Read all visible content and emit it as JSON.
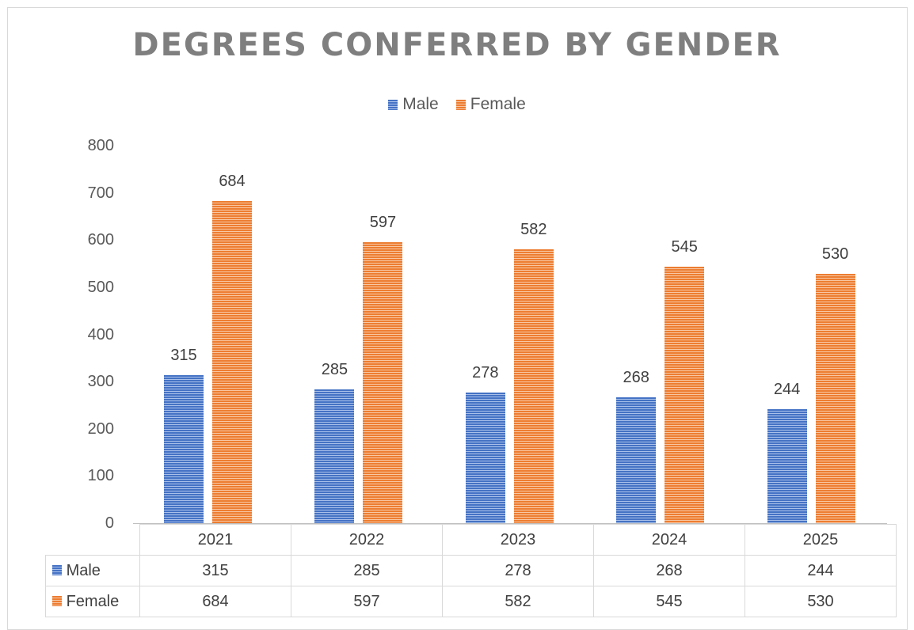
{
  "chart_data": {
    "type": "bar",
    "title": "DEGREES CONFERRED BY GENDER",
    "categories": [
      "2021",
      "2022",
      "2023",
      "2024",
      "2025"
    ],
    "series": [
      {
        "name": "Male",
        "color": "#4472c4",
        "values": [
          315,
          285,
          278,
          268,
          244
        ]
      },
      {
        "name": "Female",
        "color": "#ed7d31",
        "values": [
          684,
          597,
          582,
          545,
          530
        ]
      }
    ],
    "xlabel": "",
    "ylabel": "",
    "ylim": [
      0,
      800
    ],
    "yticks": [
      "0",
      "100",
      "200",
      "300",
      "400",
      "500",
      "600",
      "700",
      "800"
    ],
    "legend_position": "top",
    "grid": false,
    "data_table": true
  },
  "title": "DEGREES CONFERRED BY GENDER",
  "legend": {
    "male": "Male",
    "female": "Female"
  },
  "table": {
    "years": [
      "2021",
      "2022",
      "2023",
      "2024",
      "2025"
    ],
    "male_label": "Male",
    "female_label": "Female",
    "male": [
      "315",
      "285",
      "278",
      "268",
      "244"
    ],
    "female": [
      "684",
      "597",
      "582",
      "545",
      "530"
    ]
  }
}
